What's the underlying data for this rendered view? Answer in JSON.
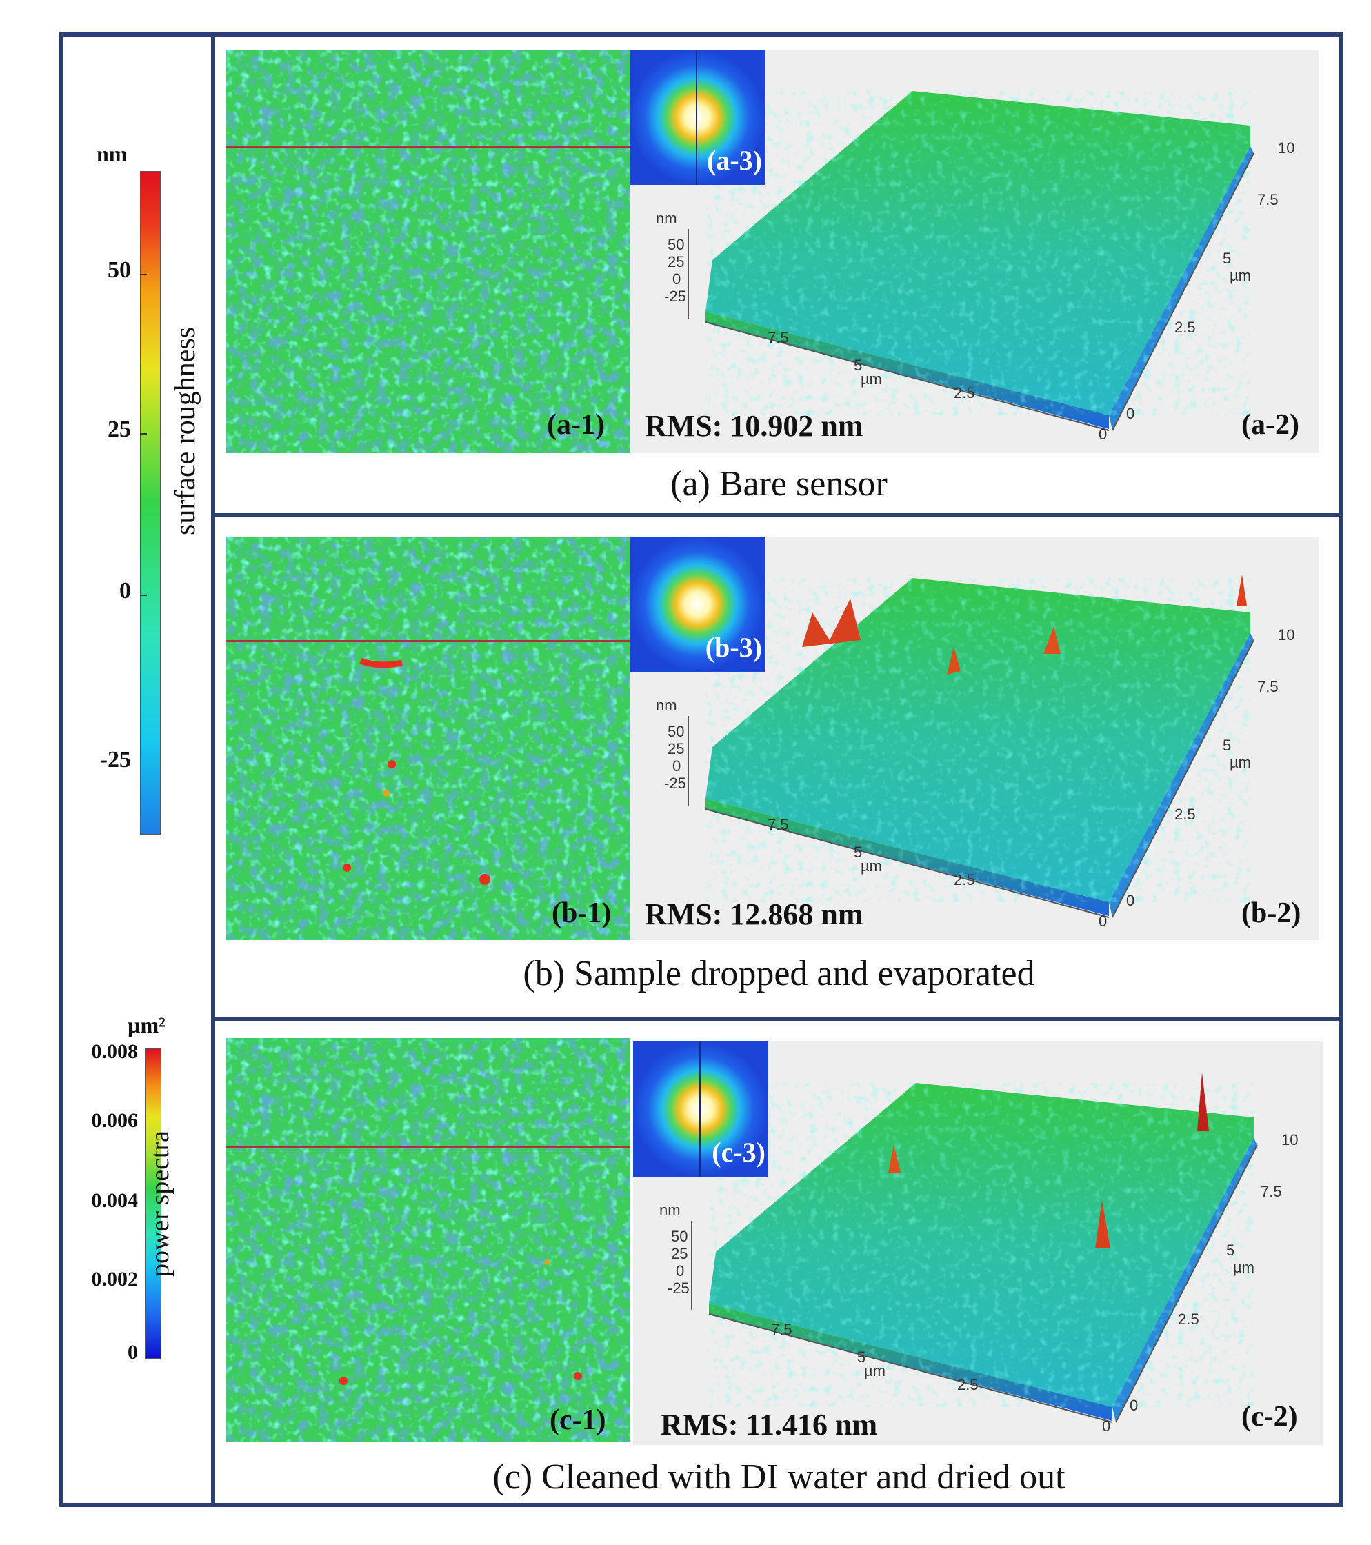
{
  "colorbars": {
    "roughness": {
      "unit": "nm",
      "label": "surface roughness",
      "ticks": [
        "50",
        "25",
        "0",
        "-25"
      ]
    },
    "power": {
      "unit": "µm²",
      "label": "power spectra",
      "ticks": [
        "0.008",
        "0.006",
        "0.004",
        "0.002",
        "0"
      ]
    }
  },
  "colors": {
    "frame": "#2b3f73",
    "scanline": "#b03040",
    "panel_bg": "#eeeeee"
  },
  "axis3d": {
    "z_unit": "nm",
    "z_ticks": [
      "50",
      "25",
      "0",
      "-25"
    ],
    "xy_unit": "µm",
    "x_ticks": [
      "7.5",
      "5",
      "2.5"
    ],
    "y_ticks": [
      "7.5",
      "5",
      "2.5"
    ],
    "origin": "0",
    "end": "10"
  },
  "panels": [
    {
      "fft_label": "(a-3)",
      "label_2d": "(a-1)",
      "label_3d": "(a-2)",
      "rms": "RMS: 10.902 nm",
      "caption": "(a) Bare sensor"
    },
    {
      "fft_label": "(b-3)",
      "label_2d": "(b-1)",
      "label_3d": "(b-2)",
      "rms": "RMS: 12.868 nm",
      "caption": "(b) Sample dropped and evaporated"
    },
    {
      "fft_label": "(c-3)",
      "label_2d": "(c-1)",
      "label_3d": "(c-2)",
      "rms": "RMS: 11.416 nm",
      "caption": "(c) Cleaned with DI water and dried out"
    }
  ]
}
